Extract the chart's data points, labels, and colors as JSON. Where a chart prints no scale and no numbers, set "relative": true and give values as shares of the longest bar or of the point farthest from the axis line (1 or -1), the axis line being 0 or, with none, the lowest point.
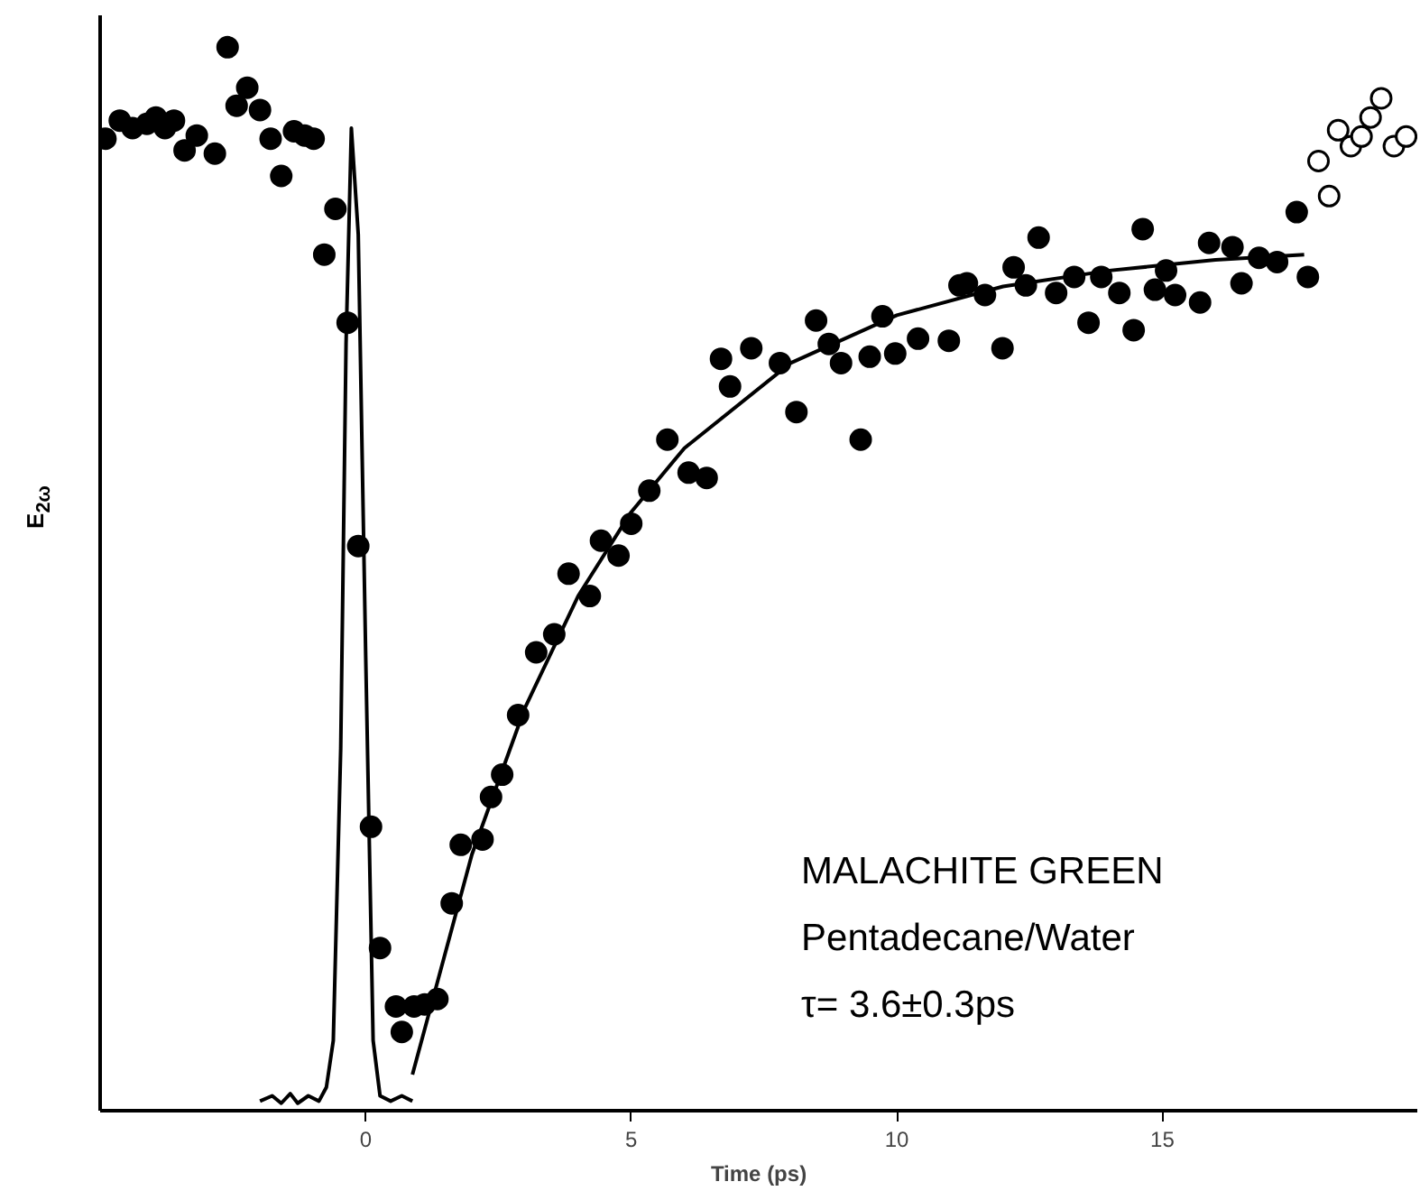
{
  "chart_data": {
    "type": "scatter",
    "relative": true,
    "xlabel": "Time (ps)",
    "ylabel": "E$_{2ω}$",
    "xlim": [
      -5,
      19.8
    ],
    "xticks": [
      0,
      5,
      10,
      15
    ],
    "grid": false,
    "annotations": [
      "MALACHITE GREEN",
      "Pentadecane/Water",
      "τ=  3.6±0.3ps"
    ],
    "series": [
      {
        "marker": "circle",
        "color": "#000000",
        "x": [
          -4.9,
          -4.63,
          -4.39,
          -4.12,
          -3.95,
          -3.78,
          -3.61,
          -3.41,
          -3.18,
          -2.84,
          -2.6,
          -2.43,
          -2.23,
          -1.99,
          -1.79,
          -1.59,
          -1.35,
          -1.15,
          -0.98,
          -0.78,
          -0.57,
          -0.34,
          -0.14,
          0.1,
          0.27,
          0.57,
          0.68,
          0.91,
          1.11,
          1.35,
          1.62,
          1.79,
          2.2,
          2.36,
          2.57,
          2.87,
          3.21,
          3.55,
          3.82,
          4.22,
          4.43,
          4.76,
          5.0,
          5.34,
          5.68,
          6.08,
          6.42,
          6.69,
          6.86,
          7.26,
          7.8,
          8.11,
          8.48,
          8.72,
          8.95,
          9.32,
          9.49,
          9.73,
          9.97,
          10.4,
          10.98,
          11.18,
          11.32,
          11.66,
          11.99,
          12.2,
          12.43,
          12.67,
          13.0,
          13.34,
          13.61,
          13.85,
          14.19,
          14.46,
          14.63,
          14.86,
          15.07,
          15.24,
          15.71,
          15.88,
          16.32,
          16.49,
          16.82,
          17.16,
          17.53,
          17.74
        ],
        "values": [
          0.914,
          0.931,
          0.924,
          0.928,
          0.934,
          0.924,
          0.931,
          0.903,
          0.917,
          0.9,
          1.0,
          0.945,
          0.962,
          0.941,
          0.914,
          0.879,
          0.921,
          0.917,
          0.914,
          0.805,
          0.848,
          0.741,
          0.531,
          0.267,
          0.153,
          0.098,
          0.074,
          0.098,
          0.1,
          0.105,
          0.195,
          0.25,
          0.255,
          0.295,
          0.316,
          0.372,
          0.431,
          0.448,
          0.505,
          0.484,
          0.536,
          0.522,
          0.552,
          0.583,
          0.631,
          0.6,
          0.595,
          0.707,
          0.681,
          0.717,
          0.703,
          0.657,
          0.743,
          0.721,
          0.703,
          0.631,
          0.709,
          0.747,
          0.712,
          0.726,
          0.724,
          0.776,
          0.778,
          0.767,
          0.717,
          0.793,
          0.776,
          0.821,
          0.769,
          0.784,
          0.741,
          0.784,
          0.769,
          0.734,
          0.829,
          0.772,
          0.79,
          0.767,
          0.76,
          0.816,
          0.812,
          0.778,
          0.802,
          0.798,
          0.845,
          0.784
        ]
      },
      {
        "marker": "circle",
        "color": "#ffffff",
        "x": [
          17.94,
          18.14,
          18.31,
          18.55,
          18.75,
          18.92,
          19.12,
          19.36,
          19.59
        ],
        "values": [
          0.893,
          0.86,
          0.922,
          0.907,
          0.916,
          0.934,
          0.952,
          0.907,
          0.916
        ]
      },
      {
        "type": "line",
        "color": "#000000",
        "line_style": "solid",
        "x": [
          -1.99,
          -1.76,
          -1.59,
          -1.42,
          -1.28,
          -1.08,
          -0.88,
          -0.74,
          -0.61,
          -0.47,
          -0.37,
          -0.27,
          -0.14,
          0,
          0.14,
          0.27,
          0.47,
          0.68,
          0.88
        ],
        "values": [
          0.009,
          0.014,
          0.007,
          0.016,
          0.007,
          0.014,
          0.009,
          0.022,
          0.066,
          0.341,
          0.721,
          0.924,
          0.824,
          0.428,
          0.066,
          0.014,
          0.009,
          0.014,
          0.009
        ]
      },
      {
        "type": "line",
        "color": "#000000",
        "line_style": "solid",
        "x": [
          0.88,
          2,
          3,
          4,
          5,
          6,
          8,
          10,
          12,
          14,
          16,
          17.67
        ],
        "values": [
          0.034,
          0.241,
          0.379,
          0.484,
          0.563,
          0.623,
          0.703,
          0.748,
          0.775,
          0.79,
          0.8,
          0.805
        ]
      }
    ]
  }
}
